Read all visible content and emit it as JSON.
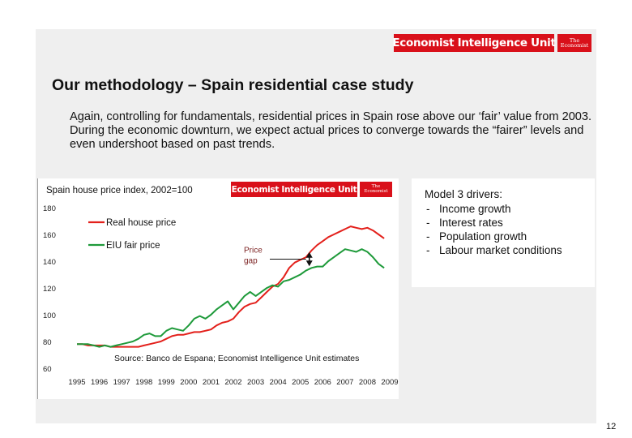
{
  "slide": {
    "title": "Our methodology – Spain residential case study",
    "intro": "Again, controlling for fundamentals, residential prices in Spain rose above our ‘fair’ value from 2003. During the economic downturn, we expect actual prices to converge towards the “fairer” levels and even undershoot based on past trends.",
    "logo_text": "Economist Intelligence Unit",
    "logo_badge": [
      "The",
      "Economist"
    ],
    "page_number": "12"
  },
  "drivers": {
    "title": "Model 3 drivers:",
    "items": [
      "Income growth",
      "Interest rates",
      "Population growth",
      "Labour market conditions"
    ]
  },
  "colors": {
    "brand_red": "#d9101a",
    "real_price": "#e3201b",
    "fair_price": "#1e9a3a",
    "annotation": "#7a1f1f"
  },
  "chart_data": {
    "type": "line",
    "title": "Spain house price index, 2002=100",
    "xlabel": "",
    "ylabel": "",
    "ylim": [
      60,
      180
    ],
    "yticks": [
      60,
      80,
      100,
      120,
      140,
      160,
      180
    ],
    "xticks": [
      "1995",
      "1996",
      "1997",
      "1998",
      "1999",
      "2000",
      "2001",
      "2002",
      "2003",
      "2004",
      "2005",
      "2006",
      "2007",
      "2008",
      "2009"
    ],
    "grid": false,
    "legend_position": "top-left",
    "annotation": {
      "lines": [
        "Price",
        "gap"
      ]
    },
    "source": "Source: Banco de Espana; Economist Intelligence Unit estimates",
    "series": [
      {
        "name": "Real house price",
        "color": "#e3201b",
        "points": [
          [
            1995.0,
            78
          ],
          [
            1995.25,
            78
          ],
          [
            1995.5,
            77
          ],
          [
            1995.75,
            77
          ],
          [
            1996.0,
            77
          ],
          [
            1996.25,
            77
          ],
          [
            1996.5,
            76
          ],
          [
            1996.75,
            76
          ],
          [
            1997.0,
            76
          ],
          [
            1997.25,
            76
          ],
          [
            1997.5,
            76
          ],
          [
            1997.75,
            76
          ],
          [
            1998.0,
            77
          ],
          [
            1998.25,
            78
          ],
          [
            1998.5,
            79
          ],
          [
            1998.75,
            80
          ],
          [
            1999.0,
            82
          ],
          [
            1999.25,
            84
          ],
          [
            1999.5,
            85
          ],
          [
            1999.75,
            85
          ],
          [
            2000.0,
            86
          ],
          [
            2000.25,
            87
          ],
          [
            2000.5,
            87
          ],
          [
            2000.75,
            88
          ],
          [
            2001.0,
            89
          ],
          [
            2001.25,
            92
          ],
          [
            2001.5,
            94
          ],
          [
            2001.75,
            95
          ],
          [
            2002.0,
            97
          ],
          [
            2002.25,
            102
          ],
          [
            2002.5,
            106
          ],
          [
            2002.75,
            108
          ],
          [
            2003.0,
            109
          ],
          [
            2003.25,
            113
          ],
          [
            2003.5,
            117
          ],
          [
            2003.75,
            121
          ],
          [
            2004.0,
            123
          ],
          [
            2004.25,
            128
          ],
          [
            2004.5,
            135
          ],
          [
            2004.75,
            139
          ],
          [
            2005.0,
            141
          ],
          [
            2005.25,
            143
          ],
          [
            2005.5,
            148
          ],
          [
            2005.75,
            152
          ],
          [
            2006.0,
            155
          ],
          [
            2006.25,
            158
          ],
          [
            2006.5,
            160
          ],
          [
            2006.75,
            162
          ],
          [
            2007.0,
            164
          ],
          [
            2007.25,
            166
          ],
          [
            2007.5,
            165
          ],
          [
            2007.75,
            164
          ],
          [
            2008.0,
            165
          ],
          [
            2008.25,
            163
          ],
          [
            2008.5,
            160
          ],
          [
            2008.75,
            157
          ]
        ]
      },
      {
        "name": "EIU fair price",
        "color": "#1e9a3a",
        "points": [
          [
            1995.0,
            78
          ],
          [
            1995.25,
            78
          ],
          [
            1995.5,
            78
          ],
          [
            1995.75,
            77
          ],
          [
            1996.0,
            76
          ],
          [
            1996.25,
            77
          ],
          [
            1996.5,
            76
          ],
          [
            1996.75,
            77
          ],
          [
            1997.0,
            78
          ],
          [
            1997.25,
            79
          ],
          [
            1997.5,
            80
          ],
          [
            1997.75,
            82
          ],
          [
            1998.0,
            85
          ],
          [
            1998.25,
            86
          ],
          [
            1998.5,
            84
          ],
          [
            1998.75,
            84
          ],
          [
            1999.0,
            88
          ],
          [
            1999.25,
            90
          ],
          [
            1999.5,
            89
          ],
          [
            1999.75,
            88
          ],
          [
            2000.0,
            92
          ],
          [
            2000.25,
            97
          ],
          [
            2000.5,
            99
          ],
          [
            2000.75,
            97
          ],
          [
            2001.0,
            100
          ],
          [
            2001.25,
            104
          ],
          [
            2001.5,
            107
          ],
          [
            2001.75,
            110
          ],
          [
            2002.0,
            104
          ],
          [
            2002.25,
            109
          ],
          [
            2002.5,
            114
          ],
          [
            2002.75,
            117
          ],
          [
            2003.0,
            114
          ],
          [
            2003.25,
            117
          ],
          [
            2003.5,
            120
          ],
          [
            2003.75,
            122
          ],
          [
            2004.0,
            121
          ],
          [
            2004.25,
            125
          ],
          [
            2004.5,
            126
          ],
          [
            2004.75,
            128
          ],
          [
            2005.0,
            130
          ],
          [
            2005.25,
            133
          ],
          [
            2005.5,
            135
          ],
          [
            2005.75,
            136
          ],
          [
            2006.0,
            136
          ],
          [
            2006.25,
            140
          ],
          [
            2006.5,
            143
          ],
          [
            2006.75,
            146
          ],
          [
            2007.0,
            149
          ],
          [
            2007.25,
            148
          ],
          [
            2007.5,
            147
          ],
          [
            2007.75,
            149
          ],
          [
            2008.0,
            147
          ],
          [
            2008.25,
            143
          ],
          [
            2008.5,
            138
          ],
          [
            2008.75,
            135
          ]
        ]
      }
    ]
  }
}
